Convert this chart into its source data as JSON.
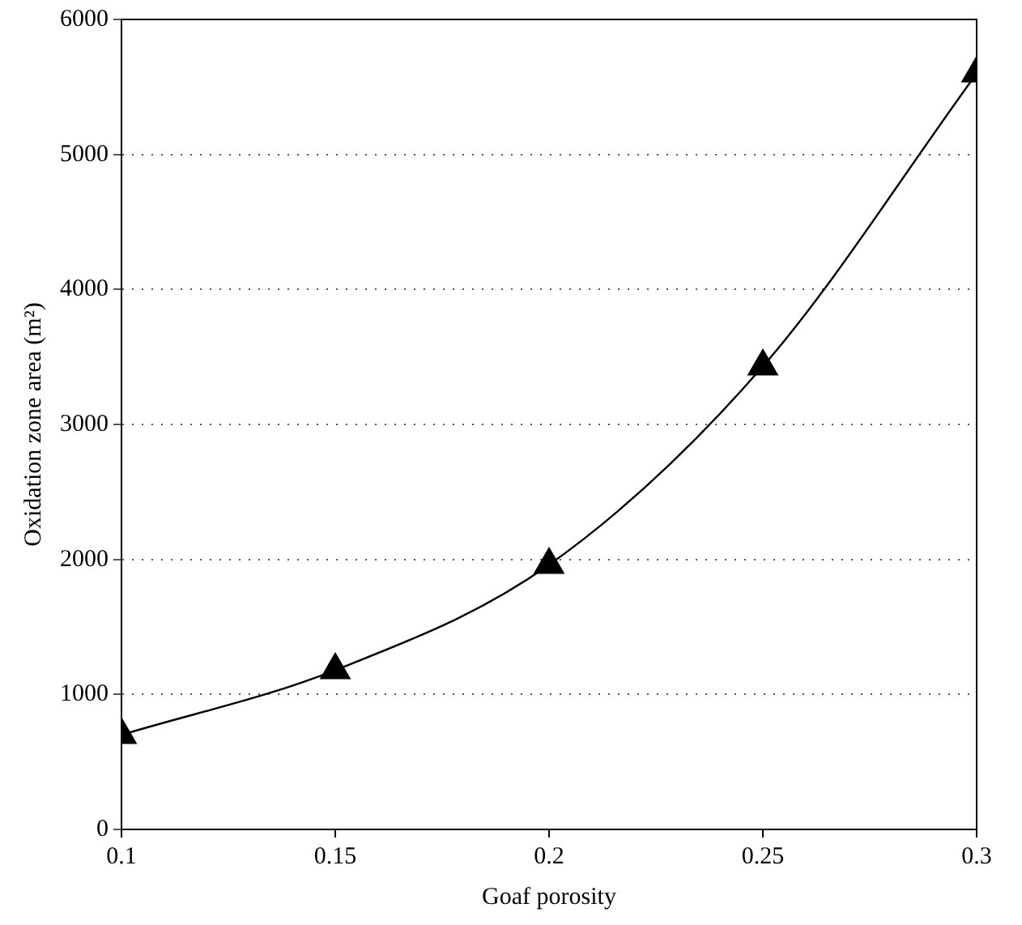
{
  "chart_data": {
    "type": "line",
    "xlabel": "Goaf porosity",
    "ylabel": "Oxidation zone area (m²)",
    "x": [
      0.1,
      0.15,
      0.2,
      0.25,
      0.3
    ],
    "series": [
      {
        "color": "#000000",
        "values": [
          700,
          1180,
          1960,
          3430,
          5600
        ]
      }
    ],
    "xlim": [
      0.1,
      0.3
    ],
    "xticks": [
      0.1,
      0.15,
      0.2,
      0.25,
      0.3
    ],
    "ylim": [
      0,
      6000
    ],
    "yticks": [
      0,
      1000,
      2000,
      3000,
      4000,
      5000,
      6000
    ],
    "grid": "y",
    "legend": false,
    "marker": "triangle",
    "line_style": "solid"
  }
}
